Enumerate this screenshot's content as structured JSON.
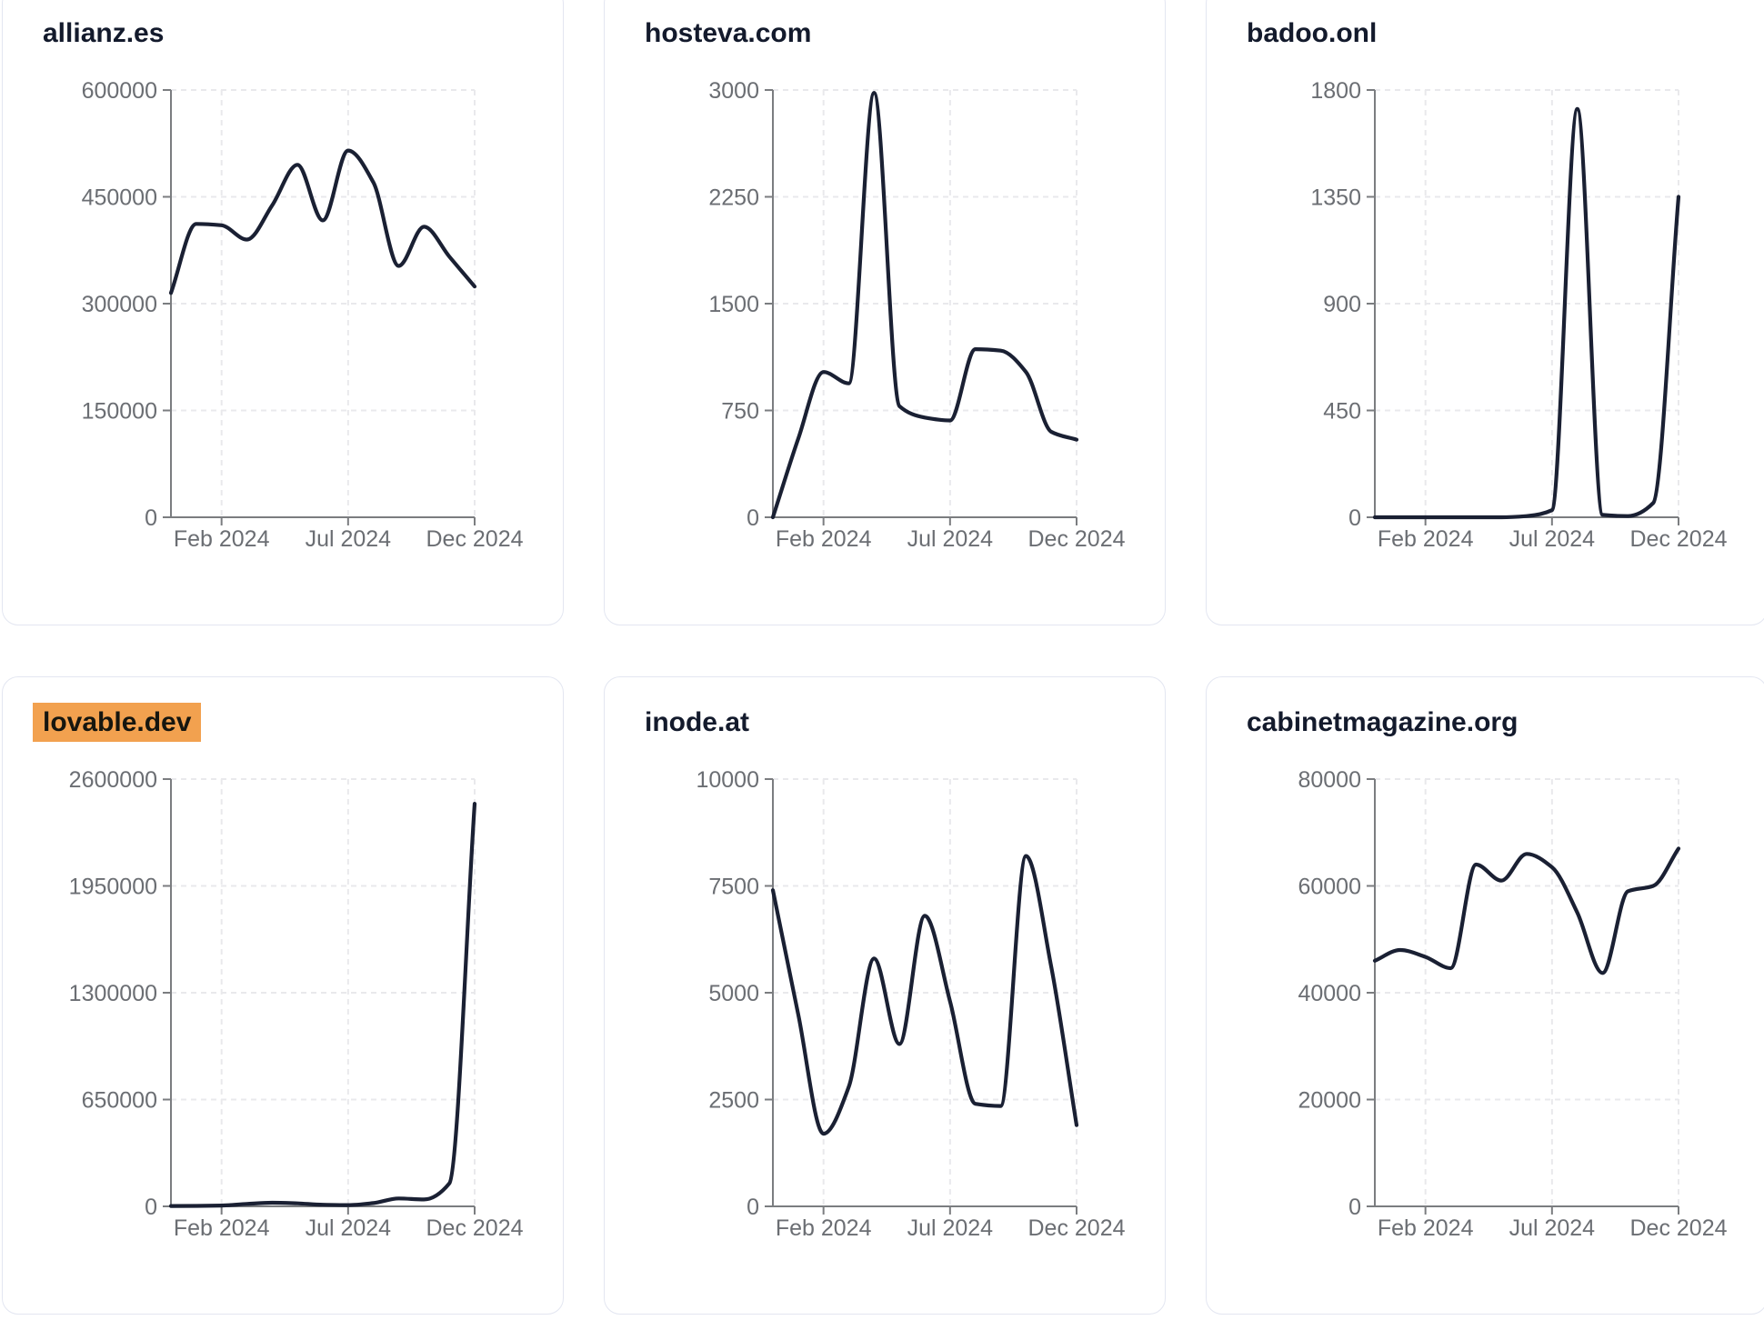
{
  "styles": {
    "page_bg": "#ffffff",
    "card_bg": "#ffffff",
    "card_border": "#e3e6f1",
    "title_color": "#131a2c",
    "highlight_bg": "#f2a14f",
    "highlight_text": "#16160f",
    "line_color": "#1a2033",
    "axis_color": "#7b7d80",
    "grid_color": "#e9e9ec",
    "tick_label_color": "#6b6e73"
  },
  "chart_data": [
    {
      "type": "line",
      "title": "allianz.es",
      "highlighted": false,
      "x": [
        "Dec 2023",
        "Jan 2024",
        "Feb 2024",
        "Mar 2024",
        "Apr 2024",
        "May 2024",
        "Jun 2024",
        "Jul 2024",
        "Aug 2024",
        "Sep 2024",
        "Oct 2024",
        "Nov 2024",
        "Dec 2024"
      ],
      "values": [
        315000,
        412000,
        410000,
        390000,
        438000,
        495000,
        417000,
        515000,
        470000,
        353000,
        408000,
        366000,
        324000
      ],
      "ylim": [
        0,
        600000
      ],
      "y_ticks": [
        0,
        150000,
        300000,
        450000,
        600000
      ],
      "x_ticks_shown": [
        "Feb 2024",
        "Jul 2024",
        "Dec 2024"
      ],
      "grid": "dashed",
      "legend": "none"
    },
    {
      "type": "line",
      "title": "hosteva.com",
      "highlighted": false,
      "x": [
        "Dec 2023",
        "Jan 2024",
        "Feb 2024",
        "Mar 2024",
        "Apr 2024",
        "May 2024",
        "Jun 2024",
        "Jul 2024",
        "Aug 2024",
        "Sep 2024",
        "Oct 2024",
        "Nov 2024",
        "Dec 2024"
      ],
      "values": [
        0,
        550,
        1020,
        940,
        2980,
        780,
        700,
        680,
        1180,
        1170,
        1020,
        600,
        545
      ],
      "ylim": [
        0,
        3000
      ],
      "y_ticks": [
        0,
        750,
        1500,
        2250,
        3000
      ],
      "x_ticks_shown": [
        "Feb 2024",
        "Jul 2024",
        "Dec 2024"
      ],
      "grid": "dashed",
      "legend": "none"
    },
    {
      "type": "line",
      "title": "badoo.onl",
      "highlighted": false,
      "x": [
        "Dec 2023",
        "Jan 2024",
        "Feb 2024",
        "Mar 2024",
        "Apr 2024",
        "May 2024",
        "Jun 2024",
        "Jul 2024",
        "Aug 2024",
        "Sep 2024",
        "Oct 2024",
        "Nov 2024",
        "Dec 2024"
      ],
      "values": [
        0,
        0,
        0,
        0,
        0,
        0,
        5,
        30,
        1720,
        10,
        5,
        60,
        1350
      ],
      "ylim": [
        0,
        1800
      ],
      "y_ticks": [
        0,
        450,
        900,
        1350,
        1800
      ],
      "x_ticks_shown": [
        "Feb 2024",
        "Jul 2024",
        "Dec 2024"
      ],
      "grid": "dashed",
      "legend": "none"
    },
    {
      "type": "line",
      "title": "lovable.dev",
      "highlighted": true,
      "x": [
        "Dec 2023",
        "Jan 2024",
        "Feb 2024",
        "Mar 2024",
        "Apr 2024",
        "May 2024",
        "Jun 2024",
        "Jul 2024",
        "Aug 2024",
        "Sep 2024",
        "Oct 2024",
        "Nov 2024",
        "Dec 2024"
      ],
      "values": [
        2000,
        3000,
        5000,
        15000,
        22000,
        18000,
        10000,
        8000,
        20000,
        48000,
        42000,
        140000,
        2450000
      ],
      "ylim": [
        0,
        2600000
      ],
      "y_ticks": [
        0,
        650000,
        1300000,
        1950000,
        2600000
      ],
      "x_ticks_shown": [
        "Feb 2024",
        "Jul 2024",
        "Dec 2024"
      ],
      "grid": "dashed",
      "legend": "none"
    },
    {
      "type": "line",
      "title": "inode.at",
      "highlighted": false,
      "x": [
        "Dec 2023",
        "Jan 2024",
        "Feb 2024",
        "Mar 2024",
        "Apr 2024",
        "May 2024",
        "Jun 2024",
        "Jul 2024",
        "Aug 2024",
        "Sep 2024",
        "Oct 2024",
        "Nov 2024",
        "Dec 2024"
      ],
      "values": [
        7400,
        4500,
        1700,
        2800,
        5800,
        3800,
        6800,
        4800,
        2400,
        2350,
        8200,
        5600,
        1900
      ],
      "ylim": [
        0,
        10000
      ],
      "y_ticks": [
        0,
        2500,
        5000,
        7500,
        10000
      ],
      "x_ticks_shown": [
        "Feb 2024",
        "Jul 2024",
        "Dec 2024"
      ],
      "grid": "dashed",
      "legend": "none"
    },
    {
      "type": "line",
      "title": "cabinetmagazine.org",
      "highlighted": false,
      "x": [
        "Dec 2023",
        "Jan 2024",
        "Feb 2024",
        "Mar 2024",
        "Apr 2024",
        "May 2024",
        "Jun 2024",
        "Jul 2024",
        "Aug 2024",
        "Sep 2024",
        "Oct 2024",
        "Nov 2024",
        "Dec 2024"
      ],
      "values": [
        46000,
        48000,
        46700,
        44600,
        64000,
        61000,
        66000,
        63500,
        55000,
        43700,
        59000,
        60000,
        67000
      ],
      "ylim": [
        0,
        80000
      ],
      "y_ticks": [
        0,
        20000,
        40000,
        60000,
        80000
      ],
      "x_ticks_shown": [
        "Feb 2024",
        "Jul 2024",
        "Dec 2024"
      ],
      "grid": "dashed",
      "legend": "none"
    }
  ]
}
